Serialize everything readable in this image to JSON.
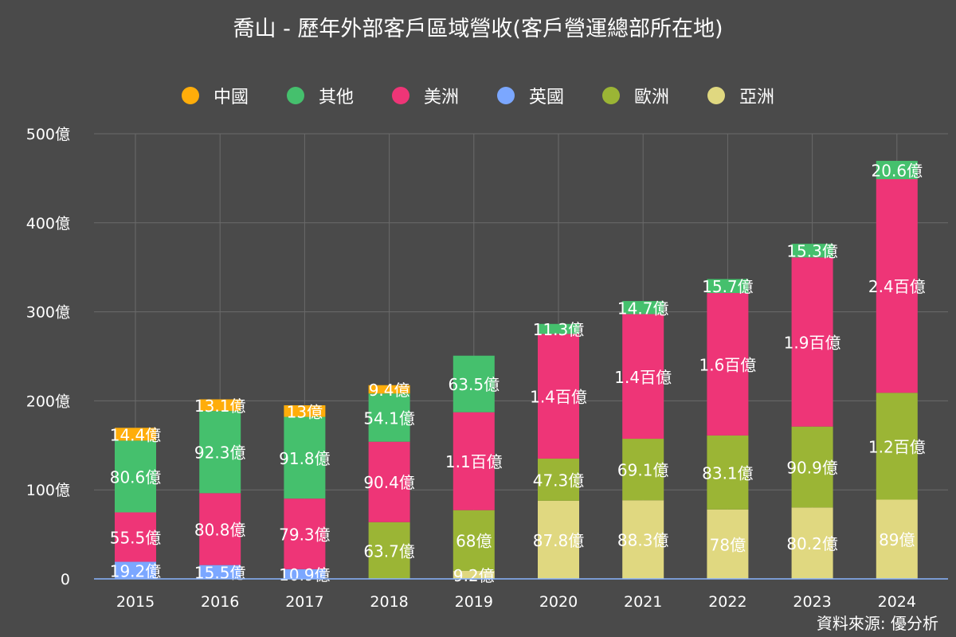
{
  "title": "喬山 - 歷年外部客戶區域營收(客戶營運總部所在地)",
  "source": "資料來源: 優分析",
  "chart_data": {
    "type": "bar",
    "stacked": true,
    "categories": [
      "2015",
      "2016",
      "2017",
      "2018",
      "2019",
      "2020",
      "2021",
      "2022",
      "2023",
      "2024"
    ],
    "ylim": [
      0,
      500
    ],
    "yticks": [
      0,
      100,
      200,
      300,
      400,
      500
    ],
    "ytick_labels": [
      "0",
      "100億",
      "200億",
      "300億",
      "400億",
      "500億"
    ],
    "grid": true,
    "legend_position": "top",
    "legend_order": [
      "中國",
      "其他",
      "美洲",
      "英國",
      "歐洲",
      "亞洲"
    ],
    "series": [
      {
        "name": "亞洲",
        "color": "#e0d880",
        "values": [
          0,
          0,
          0,
          0,
          9.2,
          87.8,
          88.3,
          78,
          80.2,
          89
        ],
        "labels": [
          "",
          "",
          "",
          "",
          "9.2億",
          "87.8億",
          "88.3億",
          "78億",
          "80.2億",
          "89億"
        ]
      },
      {
        "name": "英國",
        "color": "#7ba7ff",
        "values": [
          19.2,
          15.5,
          10.9,
          0,
          0,
          0,
          0,
          0,
          0,
          0
        ],
        "labels": [
          "19.2億",
          "15.5億",
          "10.9億",
          "",
          "",
          "",
          "",
          "",
          "",
          ""
        ]
      },
      {
        "name": "歐洲",
        "color": "#9bb535",
        "values": [
          0,
          0,
          0,
          63.7,
          68,
          47.3,
          69.1,
          83.1,
          90.9,
          120
        ],
        "labels": [
          "",
          "",
          "",
          "63.7億",
          "68億",
          "47.3億",
          "69.1億",
          "83.1億",
          "90.9億",
          "1.2百億"
        ]
      },
      {
        "name": "美洲",
        "color": "#ee3577",
        "values": [
          55.5,
          80.8,
          79.3,
          90.4,
          110,
          140,
          140,
          160,
          190,
          240
        ],
        "labels": [
          "55.5億",
          "80.8億",
          "79.3億",
          "90.4億",
          "1.1百億",
          "1.4百億",
          "1.4百億",
          "1.6百億",
          "1.9百億",
          "2.4百億"
        ]
      },
      {
        "name": "其他",
        "color": "#45c06d",
        "values": [
          80.6,
          92.3,
          91.8,
          54.1,
          63.5,
          11.3,
          14.7,
          15.7,
          15.3,
          20.6
        ],
        "labels": [
          "80.6億",
          "92.3億",
          "91.8億",
          "54.1億",
          "63.5億",
          "11.3億",
          "14.7億",
          "15.7億",
          "15.3億",
          "20.6億"
        ]
      },
      {
        "name": "中國",
        "color": "#ffad0a",
        "values": [
          14.4,
          13.1,
          13,
          9.4,
          0,
          0,
          0,
          0,
          0,
          0
        ],
        "labels": [
          "14.4億",
          "13.1億",
          "13億",
          "9.4億",
          "",
          "",
          "",
          "",
          "",
          ""
        ]
      }
    ]
  }
}
